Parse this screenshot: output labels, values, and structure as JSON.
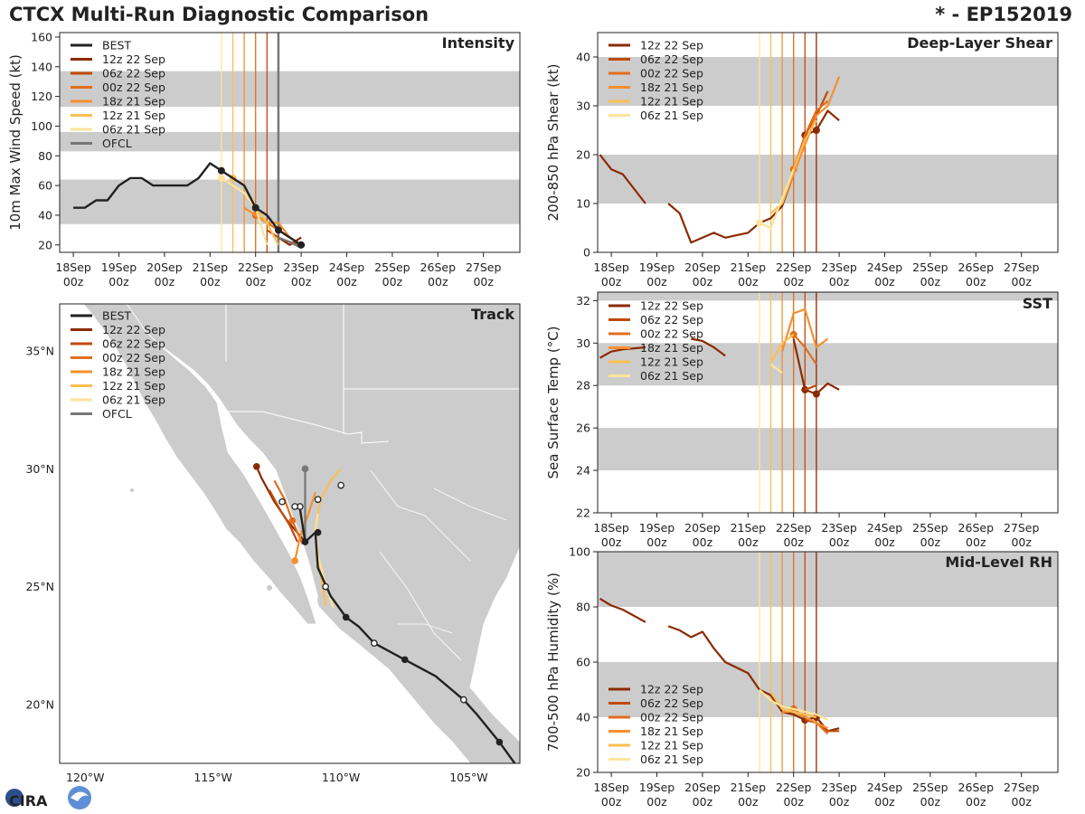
{
  "header": {
    "title": "CTCX Multi-Run Diagnostic Comparison",
    "storm": "* - EP152019"
  },
  "logo": {
    "text": "CIRA"
  },
  "colors": {
    "BEST": "#222222",
    "OFCL": "#777777",
    "12z 22 Sep": "#8b2a00",
    "06z 22 Sep": "#c04a08",
    "00z 22 Sep": "#e26e1c",
    "18z 21 Sep": "#f4902e",
    "12z 21 Sep": "#fbbf52",
    "06z 21 Sep": "#fde49a",
    "band": "#cccccc",
    "land": "#cccccc",
    "border": "#ffffff"
  },
  "time_axis": {
    "ticks": [
      0,
      1,
      2,
      3,
      4,
      5,
      6,
      7,
      8,
      9
    ],
    "labels_top": [
      "18Sep",
      "19Sep",
      "20Sep",
      "21Sep",
      "22Sep",
      "23Sep",
      "24Sep",
      "25Sep",
      "26Sep",
      "27Sep"
    ],
    "labels_bottom": [
      "00z",
      "00z",
      "00z",
      "00z",
      "00z",
      "00z",
      "00z",
      "00z",
      "00z",
      "00z"
    ],
    "range": [
      -0.3,
      9.8
    ]
  },
  "chart_data": [
    {
      "id": "intensity",
      "type": "line",
      "title": "Intensity",
      "ylabel": "10m Max Wind Speed (kt)",
      "ylim": [
        15,
        163
      ],
      "yticks": [
        20,
        40,
        60,
        80,
        100,
        120,
        140,
        160
      ],
      "bands": [
        [
          34,
          64
        ],
        [
          83,
          96
        ],
        [
          113,
          137
        ]
      ],
      "run_lines": [
        {
          "name": "06z 21 Sep",
          "x": 3.25
        },
        {
          "name": "12z 21 Sep",
          "x": 3.5
        },
        {
          "name": "18z 21 Sep",
          "x": 3.75
        },
        {
          "name": "00z 22 Sep",
          "x": 4.0
        },
        {
          "name": "06z 22 Sep",
          "x": 4.25
        },
        {
          "name": "12z 22 Sep",
          "x": 4.5
        },
        {
          "name": "OFCL",
          "x": 4.5
        }
      ],
      "legend": [
        "BEST",
        "12z 22 Sep",
        "06z 22 Sep",
        "00z 22 Sep",
        "18z 21 Sep",
        "12z 21 Sep",
        "06z 21 Sep",
        "OFCL"
      ],
      "series": [
        {
          "name": "BEST",
          "x": [
            0,
            0.25,
            0.5,
            0.75,
            1.0,
            1.25,
            1.5,
            1.75,
            2.0,
            2.25,
            2.5,
            2.75,
            3.0,
            3.25,
            3.5,
            3.75,
            4.0,
            4.25,
            4.5,
            4.75,
            5.0
          ],
          "y": [
            45,
            45,
            50,
            50,
            60,
            65,
            65,
            60,
            60,
            60,
            60,
            65,
            75,
            70,
            65,
            60,
            45,
            40,
            30,
            25,
            20
          ],
          "marks": [
            3.25,
            4.0,
            4.5,
            5.0
          ],
          "width": 2.4
        },
        {
          "name": "12z 22 Sep",
          "x": [
            4.5,
            4.75,
            5.0
          ],
          "y": [
            25,
            20,
            25
          ]
        },
        {
          "name": "06z 22 Sep",
          "x": [
            4.25,
            4.5,
            4.75,
            5.0
          ],
          "y": [
            30,
            25,
            22,
            20
          ]
        },
        {
          "name": "00z 22 Sep",
          "x": [
            4.0,
            4.25,
            4.5,
            4.75,
            5.0
          ],
          "y": [
            40,
            35,
            30,
            25,
            20
          ],
          "marks": [
            4.0
          ]
        },
        {
          "name": "18z 21 Sep",
          "x": [
            3.75,
            4.0,
            4.25,
            4.5,
            4.75,
            5.0
          ],
          "y": [
            45,
            40,
            35,
            35,
            25,
            20
          ]
        },
        {
          "name": "12z 21 Sep",
          "x": [
            3.5,
            3.75,
            4.0,
            4.25,
            4.5
          ],
          "y": [
            65,
            60,
            45,
            35,
            20
          ],
          "marks": [
            3.5
          ]
        },
        {
          "name": "06z 21 Sep",
          "x": [
            3.25,
            3.5,
            3.75,
            4.0,
            4.25
          ],
          "y": [
            65,
            60,
            55,
            45,
            20
          ],
          "marks": [
            3.25
          ]
        },
        {
          "name": "OFCL",
          "x": [
            4.5,
            4.75,
            5.0
          ],
          "y": [
            25,
            22,
            18
          ]
        }
      ]
    },
    {
      "id": "shear",
      "type": "line",
      "title": "Deep-Layer Shear",
      "ylabel": "200-850 hPa Shear (kt)",
      "ylim": [
        0,
        45
      ],
      "yticks": [
        0,
        10,
        20,
        30,
        40
      ],
      "bands": [
        [
          10,
          20
        ],
        [
          30,
          40
        ]
      ],
      "run_lines": [
        {
          "name": "06z 21 Sep",
          "x": 3.25
        },
        {
          "name": "12z 21 Sep",
          "x": 3.5
        },
        {
          "name": "18z 21 Sep",
          "x": 3.75
        },
        {
          "name": "00z 22 Sep",
          "x": 4.0
        },
        {
          "name": "06z 22 Sep",
          "x": 4.25
        },
        {
          "name": "12z 22 Sep",
          "x": 4.5
        }
      ],
      "legend": [
        "12z 22 Sep",
        "06z 22 Sep",
        "00z 22 Sep",
        "18z 21 Sep",
        "12z 21 Sep",
        "06z 21 Sep"
      ],
      "series": [
        {
          "name": "12z 22 Sep",
          "x": [
            -0.25,
            0,
            0.25,
            0.75,
            null,
            1.25,
            1.5,
            1.75,
            2.0,
            2.25,
            2.5,
            2.75,
            3.0,
            3.25,
            3.5,
            3.75,
            4.0,
            4.25,
            4.5,
            4.75,
            5.0
          ],
          "y": [
            20,
            17,
            16,
            10,
            null,
            10,
            8,
            2,
            3,
            4,
            3,
            3.5,
            4,
            6,
            7,
            9.5,
            16,
            24,
            25,
            29,
            27
          ],
          "marks": [
            4.25,
            4.5
          ]
        },
        {
          "name": "06z 22 Sep",
          "x": [
            4.25,
            4.5,
            4.75
          ],
          "y": [
            24,
            28,
            33
          ]
        },
        {
          "name": "00z 22 Sep",
          "x": [
            4.0,
            4.25,
            4.5,
            4.75
          ],
          "y": [
            17,
            24,
            29,
            31
          ],
          "marks": [
            4.0
          ]
        },
        {
          "name": "18z 21 Sep",
          "x": [
            3.75,
            4.0,
            4.25,
            4.5,
            4.75,
            5.0
          ],
          "y": [
            10,
            16,
            22,
            28,
            30,
            36
          ]
        },
        {
          "name": "12z 21 Sep",
          "x": [
            3.5,
            3.75,
            4.0,
            4.25,
            4.5
          ],
          "y": [
            8,
            10,
            17,
            23,
            27
          ]
        },
        {
          "name": "06z 21 Sep",
          "x": [
            3.25,
            3.5,
            3.75,
            4.0
          ],
          "y": [
            6,
            5,
            11,
            17
          ],
          "marks": [
            3.25
          ]
        }
      ]
    },
    {
      "id": "sst",
      "type": "line",
      "title": "SST",
      "ylabel": "Sea Surface Temp (°C)",
      "ylim": [
        22,
        32.4
      ],
      "yticks": [
        22,
        24,
        26,
        28,
        30,
        32
      ],
      "bands": [
        [
          24,
          26
        ],
        [
          28,
          30
        ],
        [
          32,
          34
        ]
      ],
      "run_lines": [
        {
          "name": "06z 21 Sep",
          "x": 3.25
        },
        {
          "name": "12z 21 Sep",
          "x": 3.5
        },
        {
          "name": "18z 21 Sep",
          "x": 3.75
        },
        {
          "name": "00z 22 Sep",
          "x": 4.0
        },
        {
          "name": "06z 22 Sep",
          "x": 4.25
        },
        {
          "name": "12z 22 Sep",
          "x": 4.5
        }
      ],
      "legend": [
        "12z 22 Sep",
        "06z 22 Sep",
        "00z 22 Sep",
        "18z 21 Sep",
        "12z 21 Sep",
        "06z 21 Sep"
      ],
      "series": [
        {
          "name": "12z 22 Sep",
          "x": [
            -0.25,
            0,
            0.25,
            0.75,
            null,
            1.75,
            2.0,
            2.25,
            2.5,
            null,
            4.0,
            4.25,
            4.5,
            4.75,
            5.0
          ],
          "y": [
            29.3,
            29.6,
            29.7,
            29.8,
            null,
            30.2,
            30.1,
            29.8,
            29.4,
            null,
            30.2,
            27.8,
            27.6,
            28.1,
            27.8
          ],
          "marks": [
            4.25,
            4.5
          ]
        },
        {
          "name": "06z 22 Sep",
          "x": [
            4.25,
            4.5
          ],
          "y": [
            27.8,
            28.0
          ]
        },
        {
          "name": "00z 22 Sep",
          "x": [
            4.0,
            4.25,
            4.5
          ],
          "y": [
            30.4,
            29.8,
            29.0
          ],
          "marks": [
            4.0
          ]
        },
        {
          "name": "18z 21 Sep",
          "x": [
            3.75,
            4.0,
            4.25,
            4.5,
            4.75
          ],
          "y": [
            29.6,
            31.4,
            31.6,
            29.8,
            30.2
          ]
        },
        {
          "name": "12z 21 Sep",
          "x": [
            3.5,
            3.75,
            4.0
          ],
          "y": [
            29.1,
            30.0,
            30.4
          ]
        },
        {
          "name": "06z 21 Sep",
          "x": [
            3.5,
            3.75
          ],
          "y": [
            29.0,
            28.6
          ]
        }
      ]
    },
    {
      "id": "rh",
      "type": "line",
      "title": "Mid-Level RH",
      "ylabel": "700-500 hPa Humidity (%)",
      "ylim": [
        20,
        100
      ],
      "yticks": [
        20,
        40,
        60,
        80,
        100
      ],
      "bands": [
        [
          40,
          60
        ],
        [
          80,
          100
        ]
      ],
      "run_lines": [
        {
          "name": "06z 21 Sep",
          "x": 3.25
        },
        {
          "name": "12z 21 Sep",
          "x": 3.5
        },
        {
          "name": "18z 21 Sep",
          "x": 3.75
        },
        {
          "name": "00z 22 Sep",
          "x": 4.0
        },
        {
          "name": "06z 22 Sep",
          "x": 4.25
        },
        {
          "name": "12z 22 Sep",
          "x": 4.5
        }
      ],
      "legend": [
        "12z 22 Sep",
        "06z 22 Sep",
        "00z 22 Sep",
        "18z 21 Sep",
        "12z 21 Sep",
        "06z 21 Sep"
      ],
      "series": [
        {
          "name": "12z 22 Sep",
          "x": [
            -0.25,
            0,
            0.25,
            0.75,
            null,
            1.25,
            1.5,
            1.75,
            2.0,
            2.25,
            2.5,
            2.75,
            3.0,
            3.25,
            3.5,
            3.75,
            4.0,
            4.25,
            4.5,
            4.75,
            5.0
          ],
          "y": [
            83,
            80.5,
            79,
            74.5,
            null,
            73,
            71.5,
            69,
            71,
            65,
            60,
            58,
            56,
            50,
            48,
            42,
            41,
            39,
            40,
            35,
            36
          ],
          "marks": [
            4.25,
            4.5
          ]
        },
        {
          "name": "06z 22 Sep",
          "x": [
            4.25,
            4.5,
            4.75,
            5.0
          ],
          "y": [
            39,
            38,
            35,
            35
          ]
        },
        {
          "name": "00z 22 Sep",
          "x": [
            4.0,
            4.25,
            4.5,
            4.75
          ],
          "y": [
            43,
            40,
            38,
            34
          ],
          "marks": [
            4.0
          ]
        },
        {
          "name": "18z 21 Sep",
          "x": [
            3.75,
            4.0,
            4.25,
            4.5,
            4.75
          ],
          "y": [
            42,
            42,
            40,
            38,
            36
          ]
        },
        {
          "name": "12z 21 Sep",
          "x": [
            3.5,
            3.75,
            4.0,
            4.25,
            4.5
          ],
          "y": [
            49,
            43,
            42,
            41,
            40
          ]
        },
        {
          "name": "06z 21 Sep",
          "x": [
            3.25,
            3.5,
            3.75,
            4.0,
            4.25,
            4.5,
            4.75
          ],
          "y": [
            50,
            46,
            44,
            43,
            42,
            41,
            39
          ]
        }
      ]
    }
  ],
  "map": {
    "title": "Track",
    "lon_range": [
      -121.0,
      -103.0
    ],
    "lat_range": [
      17.5,
      37.0
    ],
    "xticks": [
      {
        "value": -120,
        "label": "120°W"
      },
      {
        "value": -115,
        "label": "115°W"
      },
      {
        "value": -110,
        "label": "110°W"
      },
      {
        "value": -105,
        "label": "105°W"
      }
    ],
    "yticks": [
      {
        "value": 20,
        "label": "20°N"
      },
      {
        "value": 25,
        "label": "25°N"
      },
      {
        "value": 30,
        "label": "30°N"
      },
      {
        "value": 35,
        "label": "35°N"
      }
    ],
    "legend": [
      "BEST",
      "12z 22 Sep",
      "06z 22 Sep",
      "00z 22 Sep",
      "18z 21 Sep",
      "12z 21 Sep",
      "06z 21 Sep",
      "OFCL"
    ],
    "tracks": [
      {
        "name": "BEST",
        "lon": [
          -103.2,
          -103.8,
          -104.7,
          -105.2,
          -106.3,
          -107.5,
          -108.7,
          -109.3,
          -109.8,
          -110.4,
          -110.9,
          -111.0,
          -111.4,
          -111.6,
          -111.8
        ],
        "lat": [
          17.5,
          18.4,
          19.6,
          20.2,
          21.2,
          21.9,
          22.6,
          23.3,
          23.7,
          24.6,
          25.8,
          27.3,
          26.9,
          28.3,
          28.5
        ],
        "filled": [
          [
            -103.8,
            18.4
          ],
          [
            -107.5,
            21.9
          ],
          [
            -109.8,
            23.7
          ],
          [
            -110.9,
            27.3
          ],
          [
            -111.4,
            26.9
          ]
        ],
        "open": [
          [
            -105.2,
            20.2
          ],
          [
            -108.7,
            22.6
          ],
          [
            -110.6,
            25.0
          ],
          [
            -111.6,
            28.4
          ]
        ]
      },
      {
        "name": "12z 22 Sep",
        "lon": [
          -111.4,
          -112.1,
          -112.6,
          -113.1,
          -113.3
        ],
        "lat": [
          26.9,
          27.8,
          28.6,
          29.6,
          30.1
        ],
        "filled": [
          [
            -113.3,
            30.1
          ]
        ]
      },
      {
        "name": "06z 22 Sep",
        "lon": [
          -111.7,
          -112.0,
          -112.4,
          -112.8
        ],
        "lat": [
          26.9,
          27.6,
          28.3,
          29.1
        ]
      },
      {
        "name": "00z 22 Sep",
        "lon": [
          -111.5,
          -111.9,
          -112.2,
          -112.6
        ],
        "lat": [
          26.8,
          27.8,
          28.7,
          29.5
        ],
        "filled": [
          [
            -111.9,
            27.8
          ]
        ]
      },
      {
        "name": "18z 21 Sep",
        "lon": [
          -111.8,
          -111.6,
          -111.3,
          -111.0
        ],
        "lat": [
          26.1,
          27.1,
          28.0,
          29.0
        ],
        "filled": [
          [
            -111.8,
            26.1
          ]
        ]
      },
      {
        "name": "12z 21 Sep",
        "lon": [
          -110.6,
          -110.8,
          -111.0,
          -110.8,
          -110.4,
          -110.0
        ],
        "lat": [
          24.2,
          25.6,
          27.3,
          28.7,
          29.5,
          30.0
        ]
      },
      {
        "name": "06z 21 Sep",
        "lon": [
          -110.3,
          -110.6,
          -110.9,
          -111.0,
          -110.9
        ],
        "lat": [
          24.1,
          25.1,
          26.3,
          27.4,
          28.1
        ]
      },
      {
        "name": "OFCL",
        "lon": [
          -111.4,
          -111.4
        ],
        "lat": [
          27.0,
          30.0
        ],
        "filled": [
          [
            -111.4,
            30.0
          ]
        ]
      }
    ],
    "extra_open": [
      [
        -110.0,
        29.3
      ],
      [
        -110.9,
        28.7
      ],
      [
        -112.3,
        28.6
      ],
      [
        -111.8,
        28.4
      ]
    ]
  }
}
